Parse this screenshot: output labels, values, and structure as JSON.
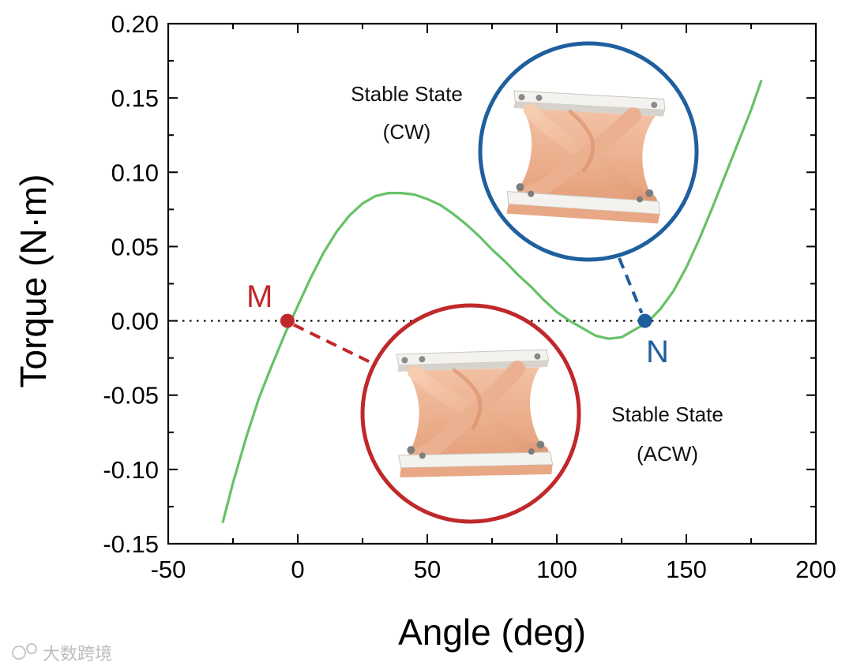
{
  "chart_data": {
    "type": "line",
    "title": "",
    "xlabel": "Angle (deg)",
    "ylabel": "Torque (N·m)",
    "xlim": [
      -50,
      200
    ],
    "ylim": [
      -0.15,
      0.2
    ],
    "x_ticks": [
      -50,
      0,
      50,
      100,
      150,
      200
    ],
    "x_tick_labels": [
      "-50",
      "0",
      "50",
      "100",
      "150",
      "200"
    ],
    "y_ticks": [
      -0.15,
      -0.1,
      -0.05,
      0.0,
      0.05,
      0.1,
      0.15,
      0.2
    ],
    "y_tick_labels": [
      "-0.15",
      "-0.10",
      "-0.05",
      "0.00",
      "0.05",
      "0.10",
      "0.15",
      "0.20"
    ],
    "grid": false,
    "zero_line": "dotted",
    "series": [
      {
        "name": "",
        "color": "#66c266",
        "x": [
          -29,
          -25,
          -20,
          -15,
          -10,
          -5,
          0,
          5,
          10,
          15,
          20,
          25,
          30,
          35,
          40,
          45,
          50,
          55,
          60,
          65,
          70,
          75,
          80,
          85,
          90,
          95,
          100,
          105,
          110,
          115,
          120,
          125,
          130,
          135,
          140,
          145,
          150,
          155,
          160,
          165,
          170,
          175,
          179
        ],
        "y": [
          -0.136,
          -0.109,
          -0.079,
          -0.052,
          -0.03,
          -0.009,
          0.01,
          0.029,
          0.046,
          0.06,
          0.071,
          0.079,
          0.084,
          0.086,
          0.086,
          0.085,
          0.082,
          0.078,
          0.072,
          0.065,
          0.057,
          0.048,
          0.04,
          0.031,
          0.023,
          0.014,
          0.006,
          0.0,
          -0.005,
          -0.01,
          -0.012,
          -0.011,
          -0.006,
          -0.001,
          0.008,
          0.02,
          0.036,
          0.055,
          0.076,
          0.098,
          0.12,
          0.142,
          0.162
        ]
      }
    ],
    "points": [
      {
        "label": "M",
        "x": -4,
        "y": 0.0,
        "color": "#c0282a"
      },
      {
        "label": "N",
        "x": 134,
        "y": 0.0,
        "color": "#1f5f9e"
      }
    ],
    "annotations": [
      {
        "lines": [
          "Stable State",
          "(CW)"
        ],
        "linked_point": "N",
        "circle_color": "#1f5f9e"
      },
      {
        "lines": [
          "Stable State",
          "(ACW)"
        ],
        "linked_point": "M",
        "circle_color": "#c0282a"
      }
    ]
  },
  "watermark": {
    "text": "大数跨境"
  }
}
